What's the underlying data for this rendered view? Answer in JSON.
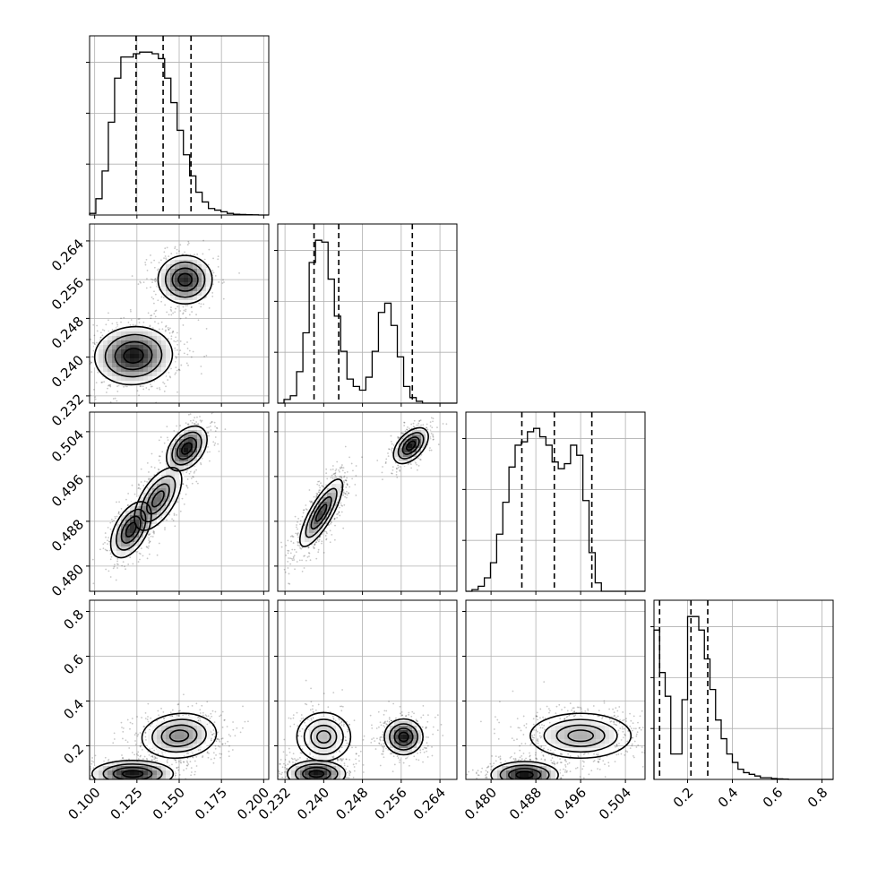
{
  "chart_data": {
    "type": "corner",
    "title": "",
    "parameters": [
      {
        "name": "",
        "range": [
          0.097,
          0.203
        ],
        "ticks": [
          "0.100",
          "0.125",
          "0.150",
          "0.175",
          "0.200"
        ],
        "tick_values": [
          0.1,
          0.125,
          0.15,
          0.175,
          0.2
        ]
      },
      {
        "name": "",
        "range": [
          0.2305,
          0.2675
        ],
        "ticks": [
          "0.232",
          "0.240",
          "0.248",
          "0.256",
          "0.264"
        ],
        "tick_values": [
          0.232,
          0.24,
          0.248,
          0.256,
          0.264
        ]
      },
      {
        "name": "",
        "range": [
          0.4755,
          0.5075
        ],
        "ticks": [
          "0.480",
          "0.488",
          "0.496",
          "0.504"
        ],
        "tick_values": [
          0.48,
          0.488,
          0.496,
          0.504
        ]
      },
      {
        "name": "",
        "range": [
          0.05,
          0.85
        ],
        "ticks": [
          "0.2",
          "0.4",
          "0.6",
          "0.8"
        ],
        "tick_values": [
          0.2,
          0.4,
          0.6,
          0.8
        ]
      }
    ],
    "histograms": [
      {
        "param": 0,
        "quantiles": [
          0.1245,
          0.1405,
          0.157
        ],
        "bins": [
          0.097,
          0.1007,
          0.1044,
          0.1081,
          0.1118,
          0.1155,
          0.1192,
          0.1229,
          0.1266,
          0.1303,
          0.134,
          0.1377,
          0.1414,
          0.1451,
          0.1488,
          0.1525,
          0.1562,
          0.1599,
          0.1636,
          0.1673,
          0.171,
          0.1747,
          0.1784,
          0.1821,
          0.1858,
          0.1895,
          0.1932,
          0.1969,
          0.2006,
          0.203
        ],
        "counts": [
          0.01,
          0.1,
          0.27,
          0.57,
          0.84,
          0.97,
          0.97,
          0.99,
          1.0,
          1.0,
          0.99,
          0.96,
          0.84,
          0.69,
          0.52,
          0.37,
          0.24,
          0.14,
          0.08,
          0.04,
          0.03,
          0.02,
          0.01,
          0.005,
          0.003,
          0.002,
          0.001,
          0.0,
          0.0
        ]
      },
      {
        "param": 1,
        "quantiles": [
          0.238,
          0.2431,
          0.2583
        ],
        "bins": [
          0.2305,
          0.2318,
          0.2331,
          0.2344,
          0.2357,
          0.237,
          0.2383,
          0.2396,
          0.2409,
          0.2422,
          0.2435,
          0.2448,
          0.2461,
          0.2474,
          0.2487,
          0.25,
          0.2513,
          0.2526,
          0.2539,
          0.2552,
          0.2565,
          0.2578,
          0.2591,
          0.2604,
          0.2617,
          0.263,
          0.2643,
          0.2656,
          0.2675
        ],
        "counts": [
          0.0,
          0.02,
          0.04,
          0.17,
          0.38,
          0.76,
          0.88,
          0.87,
          0.67,
          0.47,
          0.28,
          0.13,
          0.09,
          0.07,
          0.14,
          0.28,
          0.49,
          0.54,
          0.42,
          0.25,
          0.09,
          0.03,
          0.01,
          0.0,
          0.0,
          0.0,
          0.0,
          0.0
        ]
      },
      {
        "param": 2,
        "quantiles": [
          0.4855,
          0.4913,
          0.498
        ],
        "bins": [
          0.4755,
          0.4766,
          0.4777,
          0.4788,
          0.4799,
          0.481,
          0.4821,
          0.4832,
          0.4843,
          0.4854,
          0.4865,
          0.4876,
          0.4887,
          0.4898,
          0.4909,
          0.492,
          0.4931,
          0.4942,
          0.4953,
          0.4964,
          0.4975,
          0.4986,
          0.4997,
          0.5008,
          0.5019,
          0.503,
          0.5041,
          0.5052,
          0.5075
        ],
        "counts": [
          0.0,
          0.01,
          0.03,
          0.08,
          0.17,
          0.34,
          0.53,
          0.74,
          0.87,
          0.89,
          0.95,
          0.97,
          0.92,
          0.87,
          0.77,
          0.73,
          0.76,
          0.87,
          0.81,
          0.54,
          0.23,
          0.05,
          0.0,
          0.0,
          0.0,
          0.0,
          0.0,
          0.0
        ]
      },
      {
        "param": 3,
        "quantiles": [
          0.075,
          0.215,
          0.29
        ],
        "bins": [
          0.05,
          0.075,
          0.1,
          0.125,
          0.15,
          0.175,
          0.2,
          0.225,
          0.25,
          0.275,
          0.3,
          0.325,
          0.35,
          0.375,
          0.4,
          0.425,
          0.45,
          0.475,
          0.5,
          0.525,
          0.55,
          0.575,
          0.6,
          0.625,
          0.65,
          0.7,
          0.75,
          0.8,
          0.85
        ],
        "counts": [
          0.88,
          0.63,
          0.49,
          0.15,
          0.15,
          0.47,
          0.96,
          0.96,
          0.88,
          0.71,
          0.53,
          0.35,
          0.24,
          0.15,
          0.1,
          0.06,
          0.04,
          0.03,
          0.02,
          0.01,
          0.01,
          0.005,
          0.003,
          0.002,
          0.0,
          0.0,
          0.0,
          0.0
        ]
      }
    ],
    "scatter_panels": [
      {
        "x": 0,
        "y": 1,
        "modes": [
          {
            "cx": 0.123,
            "cy": 0.2403,
            "sx": 0.0115,
            "sy": 0.003,
            "rho": 0.05,
            "w": 0.65
          },
          {
            "cx": 0.1535,
            "cy": 0.256,
            "sx": 0.008,
            "sy": 0.0025,
            "rho": 0.0,
            "w": 0.35
          }
        ]
      },
      {
        "x": 0,
        "y": 2,
        "modes": [
          {
            "cx": 0.1215,
            "cy": 0.4865,
            "sx": 0.006,
            "sy": 0.0025,
            "rho": 0.5,
            "w": 0.34
          },
          {
            "cx": 0.1375,
            "cy": 0.492,
            "sx": 0.007,
            "sy": 0.0028,
            "rho": 0.6,
            "w": 0.34
          },
          {
            "cx": 0.1545,
            "cy": 0.501,
            "sx": 0.006,
            "sy": 0.002,
            "rho": 0.4,
            "w": 0.32
          }
        ]
      },
      {
        "x": 1,
        "y": 2,
        "modes": [
          {
            "cx": 0.2395,
            "cy": 0.4895,
            "sx": 0.0022,
            "sy": 0.003,
            "rho": 0.8,
            "w": 0.65
          },
          {
            "cx": 0.258,
            "cy": 0.5015,
            "sx": 0.0018,
            "sy": 0.0016,
            "rho": 0.5,
            "w": 0.35
          }
        ]
      },
      {
        "x": 0,
        "y": 3,
        "modes": [
          {
            "cx": 0.1225,
            "cy": 0.075,
            "sx": 0.012,
            "sy": 0.03,
            "rho": 0.0,
            "w": 0.55
          },
          {
            "cx": 0.15,
            "cy": 0.245,
            "sx": 0.011,
            "sy": 0.05,
            "rho": 0.1,
            "w": 0.45
          }
        ]
      },
      {
        "x": 1,
        "y": 3,
        "modes": [
          {
            "cx": 0.2385,
            "cy": 0.075,
            "sx": 0.003,
            "sy": 0.03,
            "rho": 0.0,
            "w": 0.4
          },
          {
            "cx": 0.24,
            "cy": 0.24,
            "sx": 0.0025,
            "sy": 0.06,
            "rho": 0.0,
            "w": 0.25
          },
          {
            "cx": 0.2565,
            "cy": 0.24,
            "sx": 0.002,
            "sy": 0.04,
            "rho": 0.0,
            "w": 0.35
          }
        ]
      },
      {
        "x": 2,
        "y": 3,
        "modes": [
          {
            "cx": 0.486,
            "cy": 0.07,
            "sx": 0.003,
            "sy": 0.03,
            "rho": 0.0,
            "w": 0.5
          },
          {
            "cx": 0.496,
            "cy": 0.245,
            "sx": 0.0045,
            "sy": 0.05,
            "rho": 0.0,
            "w": 0.5
          }
        ]
      }
    ],
    "grid": true,
    "legend": "none"
  }
}
